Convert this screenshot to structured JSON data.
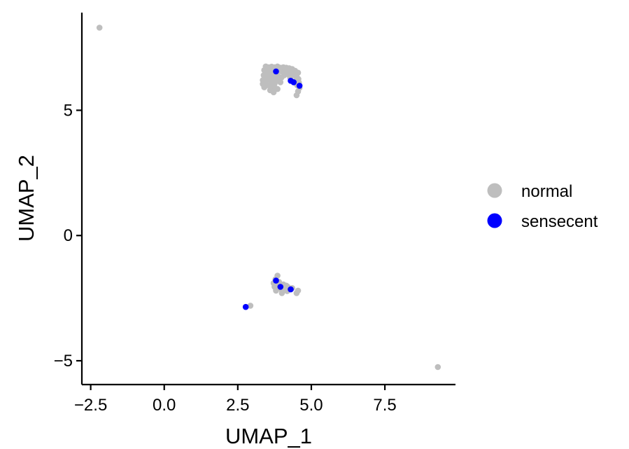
{
  "chart_data": {
    "type": "scatter",
    "xlabel": "UMAP_1",
    "ylabel": "UMAP_2",
    "xlim": [
      -2.8,
      9.9
    ],
    "ylim": [
      -5.95,
      8.9
    ],
    "x_ticks": [
      {
        "value": -2.5,
        "label": "−2.5"
      },
      {
        "value": 0.0,
        "label": "0.0"
      },
      {
        "value": 2.5,
        "label": "2.5"
      },
      {
        "value": 5.0,
        "label": "5.0"
      },
      {
        "value": 7.5,
        "label": "7.5"
      }
    ],
    "y_ticks": [
      {
        "value": -5,
        "label": "−5"
      },
      {
        "value": 0,
        "label": "0"
      },
      {
        "value": 5,
        "label": "5"
      }
    ],
    "grid": false,
    "legend_position": "right",
    "series": [
      {
        "name": "normal",
        "color": "#bebebe",
        "points": [
          [
            -2.2,
            8.3
          ],
          [
            9.3,
            -5.25
          ],
          [
            2.93,
            -2.8
          ],
          [
            3.45,
            6.75
          ],
          [
            3.55,
            6.72
          ],
          [
            3.65,
            6.74
          ],
          [
            3.75,
            6.72
          ],
          [
            3.85,
            6.75
          ],
          [
            3.95,
            6.7
          ],
          [
            4.05,
            6.72
          ],
          [
            4.15,
            6.7
          ],
          [
            4.25,
            6.68
          ],
          [
            4.35,
            6.65
          ],
          [
            4.45,
            6.58
          ],
          [
            4.55,
            6.5
          ],
          [
            3.4,
            6.6
          ],
          [
            3.5,
            6.55
          ],
          [
            3.6,
            6.6
          ],
          [
            3.7,
            6.5
          ],
          [
            3.8,
            6.45
          ],
          [
            3.9,
            6.55
          ],
          [
            4.0,
            6.6
          ],
          [
            4.1,
            6.55
          ],
          [
            4.2,
            6.5
          ],
          [
            4.3,
            6.45
          ],
          [
            4.4,
            6.4
          ],
          [
            4.5,
            6.35
          ],
          [
            3.38,
            6.4
          ],
          [
            3.48,
            6.35
          ],
          [
            3.58,
            6.42
          ],
          [
            3.68,
            6.3
          ],
          [
            3.78,
            6.25
          ],
          [
            3.88,
            6.35
          ],
          [
            3.98,
            6.3
          ],
          [
            4.08,
            6.4
          ],
          [
            4.18,
            6.45
          ],
          [
            4.28,
            6.3
          ],
          [
            4.48,
            6.2
          ],
          [
            4.58,
            6.1
          ],
          [
            3.35,
            6.2
          ],
          [
            3.45,
            6.15
          ],
          [
            3.55,
            6.25
          ],
          [
            3.65,
            6.1
          ],
          [
            3.75,
            6.05
          ],
          [
            3.85,
            6.18
          ],
          [
            3.95,
            6.12
          ],
          [
            4.52,
            6.0
          ],
          [
            4.6,
            5.9
          ],
          [
            4.55,
            5.75
          ],
          [
            4.5,
            5.6
          ],
          [
            3.35,
            6.05
          ],
          [
            3.45,
            5.98
          ],
          [
            3.55,
            6.0
          ],
          [
            3.65,
            5.95
          ],
          [
            3.75,
            5.9
          ],
          [
            3.6,
            5.8
          ],
          [
            3.72,
            5.72
          ],
          [
            3.85,
            5.85
          ],
          [
            3.4,
            5.92
          ],
          [
            3.7,
            6.6
          ],
          [
            3.82,
            6.68
          ],
          [
            4.05,
            6.5
          ],
          [
            4.12,
            6.62
          ],
          [
            4.38,
            6.55
          ],
          [
            4.46,
            6.45
          ],
          [
            4.56,
            6.25
          ],
          [
            3.85,
            -1.6
          ],
          [
            3.78,
            -1.75
          ],
          [
            3.9,
            -1.85
          ],
          [
            3.72,
            -1.9
          ],
          [
            3.82,
            -1.95
          ],
          [
            3.95,
            -2.0
          ],
          [
            4.05,
            -1.95
          ],
          [
            4.15,
            -2.0
          ],
          [
            4.2,
            -2.05
          ],
          [
            3.88,
            -2.1
          ],
          [
            3.98,
            -2.15
          ],
          [
            4.08,
            -2.12
          ],
          [
            4.25,
            -2.15
          ],
          [
            4.35,
            -2.1
          ],
          [
            3.8,
            -2.2
          ],
          [
            4.0,
            -2.3
          ],
          [
            4.18,
            -2.22
          ],
          [
            4.5,
            -2.3
          ],
          [
            4.55,
            -2.2
          ],
          [
            3.75,
            -2.05
          ]
        ]
      },
      {
        "name": "sensecent",
        "color": "#0000ff",
        "points": [
          [
            3.8,
            6.55
          ],
          [
            4.3,
            6.18
          ],
          [
            4.4,
            6.12
          ],
          [
            4.6,
            5.98
          ],
          [
            2.77,
            -2.85
          ],
          [
            3.8,
            -1.8
          ],
          [
            4.3,
            -2.15
          ],
          [
            3.95,
            -2.05
          ]
        ]
      }
    ]
  }
}
